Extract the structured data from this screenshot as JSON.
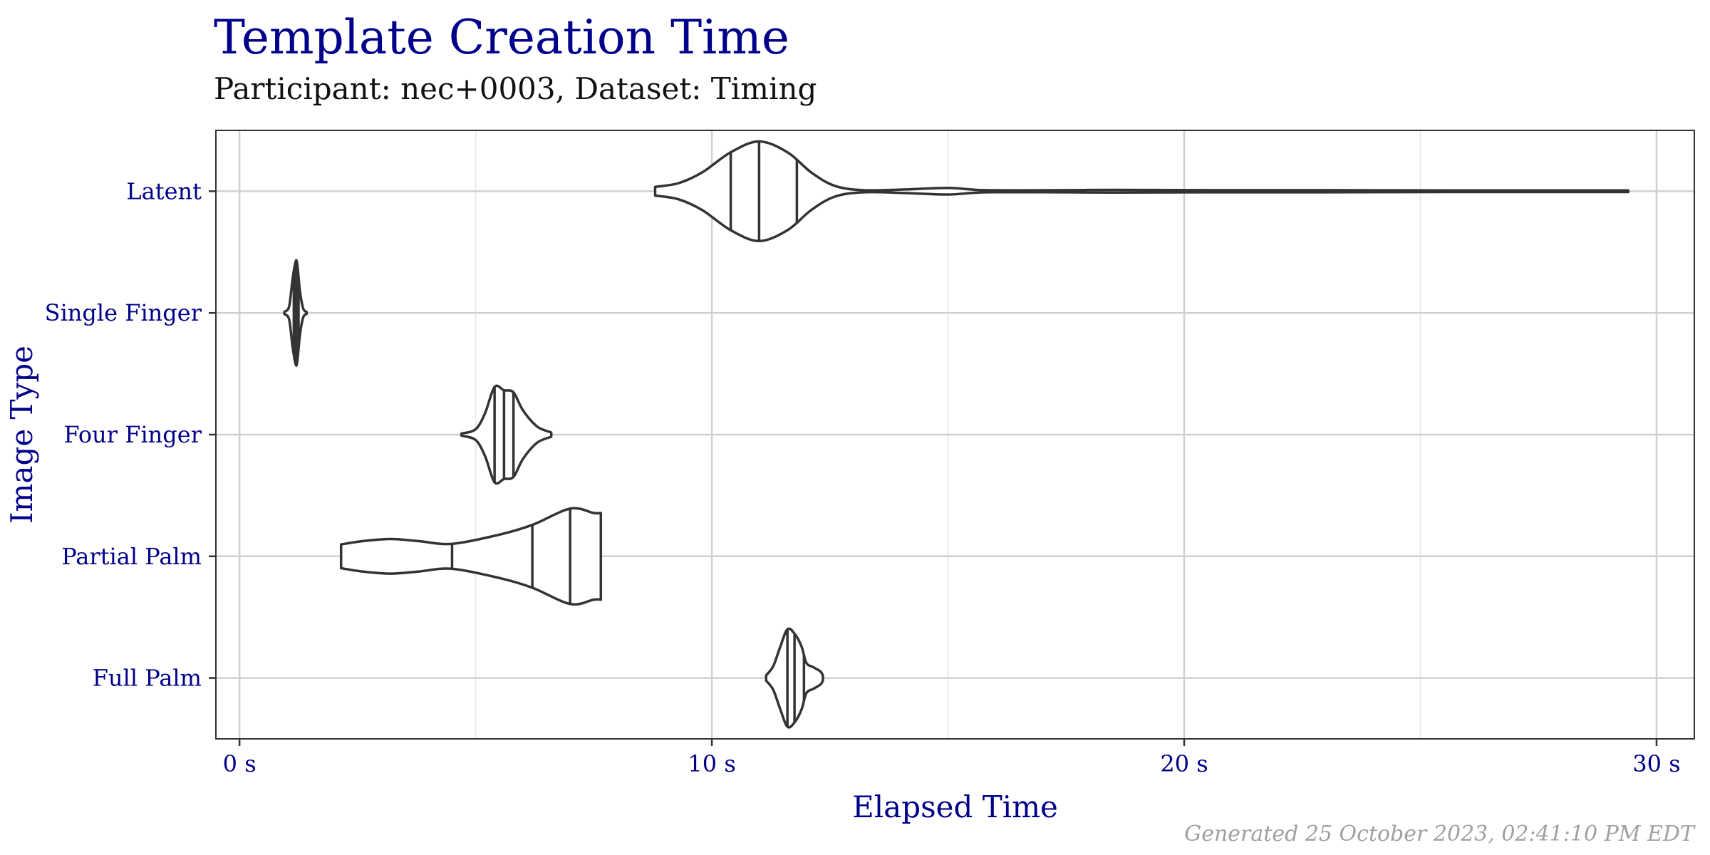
{
  "chart_data": {
    "type": "violin",
    "title": "Template Creation Time",
    "subtitle": "Participant: nec+0003, Dataset: Timing",
    "xlabel": "Elapsed Time",
    "ylabel": "Image Type",
    "xlim": [
      -0.5,
      30.8
    ],
    "x_ticks": [
      0,
      10,
      20,
      30
    ],
    "x_tick_labels": [
      "0 s",
      "10 s",
      "20 s",
      "30 s"
    ],
    "x_minor_ticks": [
      5,
      15,
      25
    ],
    "categories": [
      "Latent",
      "Single Finger",
      "Four Finger",
      "Partial Palm",
      "Full Palm"
    ],
    "grid": true,
    "colors": {
      "outline": "#333333",
      "grid": "#d0d0d0",
      "minor_grid": "#ebebeb",
      "panel_border": "#333333",
      "axis_text": "#00008b"
    },
    "series": [
      {
        "category": "Latent",
        "quantiles": [
          10.4,
          11.0,
          11.8
        ],
        "profile": [
          [
            8.8,
            0.08
          ],
          [
            9.3,
            0.15
          ],
          [
            9.8,
            0.35
          ],
          [
            10.4,
            0.72
          ],
          [
            11.0,
            0.92
          ],
          [
            11.6,
            0.72
          ],
          [
            12.1,
            0.35
          ],
          [
            12.6,
            0.1
          ],
          [
            13.2,
            0.02
          ],
          [
            14.0,
            0.03
          ],
          [
            15.0,
            0.06
          ],
          [
            15.8,
            0.02
          ],
          [
            17.5,
            0.02
          ],
          [
            18.5,
            0.025
          ],
          [
            20.5,
            0.02
          ],
          [
            23.0,
            0.02
          ],
          [
            26.0,
            0.015
          ],
          [
            29.4,
            0.015
          ]
        ]
      },
      {
        "category": "Single Finger",
        "quantiles": [
          1.15,
          1.2,
          1.25
        ],
        "profile": [
          [
            0.95,
            0.02
          ],
          [
            1.05,
            0.12
          ],
          [
            1.12,
            0.6
          ],
          [
            1.18,
            0.92
          ],
          [
            1.22,
            0.92
          ],
          [
            1.28,
            0.4
          ],
          [
            1.35,
            0.08
          ],
          [
            1.42,
            0.02
          ]
        ]
      },
      {
        "category": "Four Finger",
        "quantiles": [
          5.4,
          5.6,
          5.8
        ],
        "profile": [
          [
            4.7,
            0.02
          ],
          [
            5.0,
            0.1
          ],
          [
            5.2,
            0.4
          ],
          [
            5.4,
            0.88
          ],
          [
            5.6,
            0.82
          ],
          [
            5.8,
            0.78
          ],
          [
            6.0,
            0.45
          ],
          [
            6.3,
            0.15
          ],
          [
            6.6,
            0.04
          ]
        ]
      },
      {
        "category": "Partial Palm",
        "quantiles": [
          4.5,
          6.2,
          7.0
        ],
        "profile": [
          [
            2.15,
            0.22
          ],
          [
            2.6,
            0.28
          ],
          [
            3.2,
            0.32
          ],
          [
            3.8,
            0.28
          ],
          [
            4.5,
            0.23
          ],
          [
            5.5,
            0.4
          ],
          [
            6.2,
            0.58
          ],
          [
            7.0,
            0.88
          ],
          [
            7.5,
            0.8
          ],
          [
            7.65,
            0.8
          ]
        ]
      },
      {
        "category": "Full Palm",
        "quantiles": [
          11.6,
          11.75,
          11.95
        ],
        "profile": [
          [
            11.15,
            0.05
          ],
          [
            11.3,
            0.22
          ],
          [
            11.45,
            0.58
          ],
          [
            11.6,
            0.9
          ],
          [
            11.75,
            0.82
          ],
          [
            11.9,
            0.58
          ],
          [
            12.0,
            0.28
          ],
          [
            12.15,
            0.2
          ],
          [
            12.3,
            0.12
          ],
          [
            12.35,
            0.05
          ]
        ]
      }
    ]
  },
  "footer": "Generated 25 October 2023, 02:41:10 PM EDT"
}
